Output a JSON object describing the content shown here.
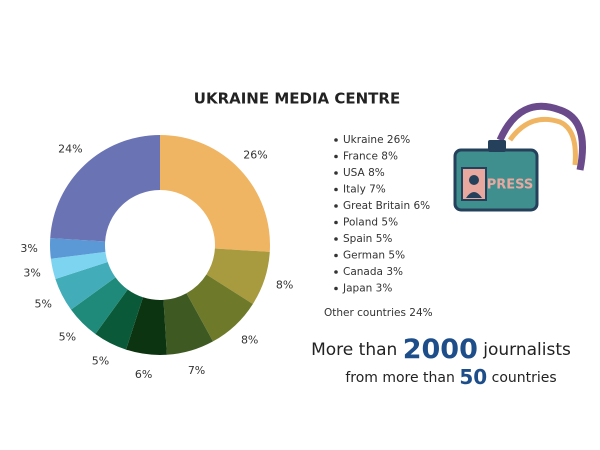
{
  "chart_data": {
    "type": "donut",
    "title": "UKRAINE MEDIA CENTRE",
    "categories": [
      "Ukraine",
      "France",
      "USA",
      "Italy",
      "Great Britain",
      "Poland",
      "Spain",
      "German",
      "Canada",
      "Japan",
      "Other countries"
    ],
    "values": [
      26,
      8,
      8,
      7,
      6,
      5,
      5,
      5,
      3,
      3,
      24
    ],
    "value_labels": [
      "26%",
      "8%",
      "8%",
      "7%",
      "6%",
      "5%",
      "5%",
      "5%",
      "3%",
      "3%",
      "24%"
    ],
    "colors": [
      "#f0b562",
      "#a89a3e",
      "#6e7a2a",
      "#3e5a22",
      "#0c3410",
      "#0a5a3a",
      "#1f8a7a",
      "#42adb8",
      "#7dd4f0",
      "#5a98d6",
      "#6a74b4"
    ],
    "annotations": [
      {
        "prefix": "More than",
        "number": 2000,
        "suffix": "journalists"
      },
      {
        "prefix": "from more than",
        "number": 50,
        "suffix": "countries"
      }
    ]
  }
}
